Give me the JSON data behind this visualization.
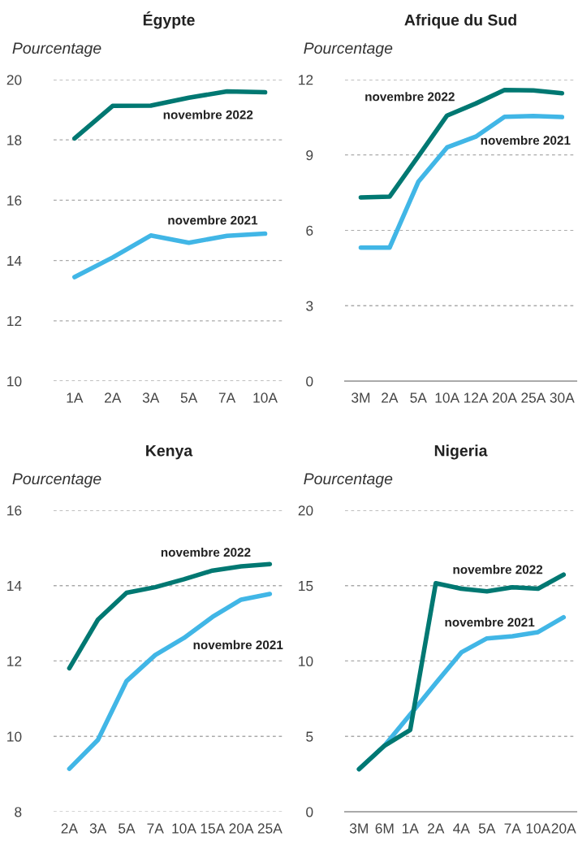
{
  "chart_data": [
    {
      "type": "line",
      "title": "Égypte",
      "ylabel": "Pourcentage",
      "categories": [
        "1A",
        "2A",
        "3A",
        "5A",
        "7A",
        "10A"
      ],
      "series": [
        {
          "name": "novembre 2022",
          "color": "#007872",
          "values": [
            18.05,
            19.13,
            19.14,
            19.4,
            19.61,
            19.58
          ]
        },
        {
          "name": "novembre 2021",
          "color": "#41b6e6",
          "values": [
            13.45,
            14.1,
            14.83,
            14.59,
            14.82,
            14.89
          ]
        }
      ],
      "ylim": [
        10,
        20
      ],
      "yticks": [
        10,
        12,
        14,
        16,
        18,
        20
      ],
      "grid": "y"
    },
    {
      "type": "line",
      "title": "Afrique du Sud",
      "ylabel": "Pourcentage",
      "categories": [
        "3M",
        "2A",
        "5A",
        "10A",
        "12A",
        "20A",
        "25A",
        "30A"
      ],
      "series": [
        {
          "name": "novembre 2022",
          "color": "#007872",
          "values": [
            7.31,
            7.34,
            8.95,
            10.57,
            11.05,
            11.59,
            11.57,
            11.46
          ]
        },
        {
          "name": "novembre 2021",
          "color": "#41b6e6",
          "values": [
            5.31,
            5.31,
            7.93,
            9.3,
            9.73,
            10.52,
            10.55,
            10.51
          ]
        }
      ],
      "ylim": [
        0,
        12
      ],
      "yticks": [
        0,
        3,
        6,
        9,
        12
      ],
      "grid": "y"
    },
    {
      "type": "line",
      "title": "Kenya",
      "ylabel": "Pourcentage",
      "categories": [
        "2A",
        "3A",
        "5A",
        "7A",
        "10A",
        "15A",
        "20A",
        "25A"
      ],
      "series": [
        {
          "name": "novembre 2022",
          "color": "#007872",
          "values": [
            11.81,
            13.1,
            13.81,
            13.96,
            14.17,
            14.4,
            14.51,
            14.57
          ]
        },
        {
          "name": "novembre 2021",
          "color": "#41b6e6",
          "values": [
            9.14,
            9.91,
            11.47,
            12.16,
            12.61,
            13.17,
            13.63,
            13.78
          ]
        }
      ],
      "ylim": [
        8,
        16
      ],
      "yticks": [
        8,
        10,
        12,
        14,
        16
      ],
      "grid": "y"
    },
    {
      "type": "line",
      "title": "Nigeria",
      "ylabel": "Pourcentage",
      "categories": [
        "3M",
        "6M",
        "1A",
        "2A",
        "4A",
        "5A",
        "7A",
        "10A",
        "20A"
      ],
      "series": [
        {
          "name": "novembre 2021",
          "color": "#41b6e6",
          "values": [
            2.83,
            4.39,
            6.45,
            8.53,
            10.57,
            11.5,
            11.65,
            11.92,
            12.9
          ]
        },
        {
          "name": "novembre 2022",
          "color": "#007872",
          "values": [
            2.83,
            4.39,
            5.43,
            15.16,
            14.8,
            14.62,
            14.89,
            14.8,
            15.73
          ]
        }
      ],
      "ylim": [
        0,
        20
      ],
      "yticks": [
        0,
        5,
        10,
        15,
        20
      ],
      "grid": "y"
    }
  ]
}
